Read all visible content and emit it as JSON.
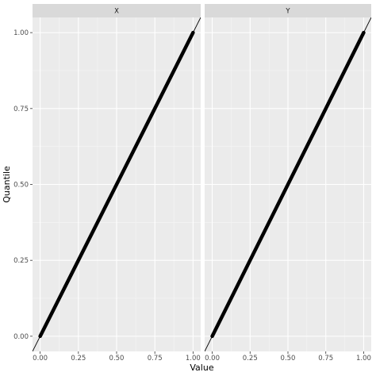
{
  "chart_data": {
    "type": "line",
    "xlabel": "Value",
    "ylabel": "Quantile",
    "xlim": [
      -0.05,
      1.05
    ],
    "ylim": [
      -0.05,
      1.05
    ],
    "x_ticks": [
      0,
      0.25,
      0.5,
      0.75,
      1
    ],
    "x_tick_labels": [
      "0.00",
      "0.25",
      "0.50",
      "0.75",
      "1.00"
    ],
    "y_ticks": [
      0,
      0.25,
      0.5,
      0.75,
      1
    ],
    "y_tick_labels": [
      "0.00",
      "0.25",
      "0.50",
      "0.75",
      "1.00"
    ],
    "grid": true,
    "reference_line": {
      "slope": 1,
      "intercept": 0
    },
    "facets": [
      {
        "label": "X",
        "x": [
          0,
          0.25,
          0.5,
          0.75,
          1
        ],
        "y": [
          0,
          0.25,
          0.5,
          0.75,
          1
        ]
      },
      {
        "label": "Y",
        "x": [
          0,
          0.25,
          0.5,
          0.75,
          1
        ],
        "y": [
          0,
          0.25,
          0.5,
          0.75,
          1
        ]
      }
    ],
    "colors": {
      "panel_bg": "#ebebeb",
      "strip_bg": "#d9d9d9",
      "grid_major": "#ffffff",
      "series": "#000000"
    }
  }
}
